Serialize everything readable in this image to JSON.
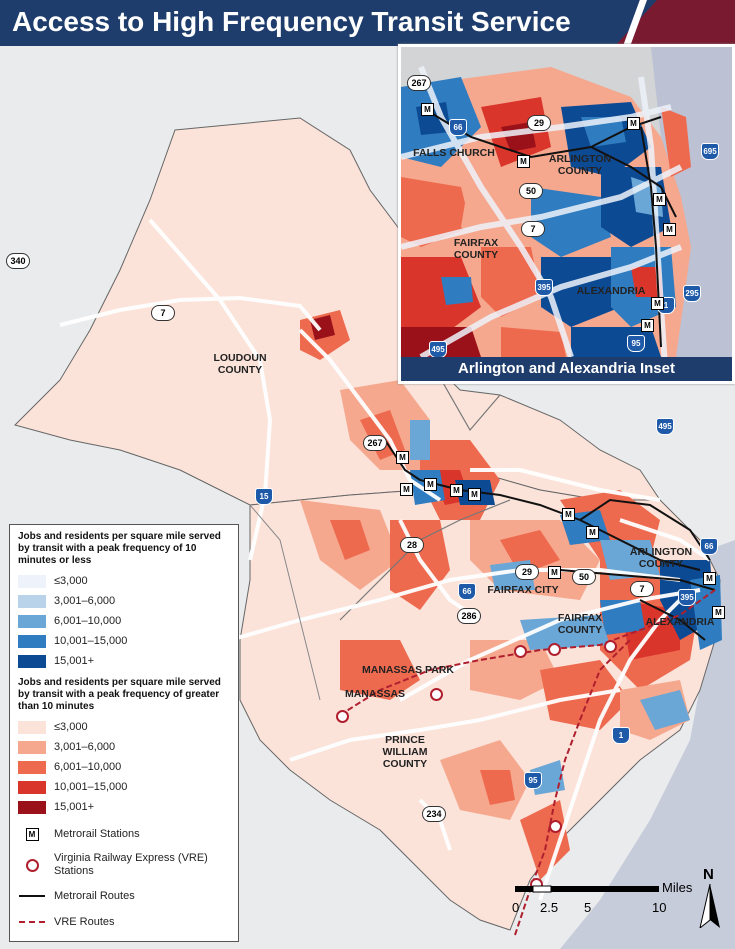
{
  "title": "Access to High Frequency Transit Service",
  "labels": {
    "loudoun": "LOUDOUN\nCOUNTY",
    "arlington": "ARLINGTON\nCOUNTY",
    "fairfax_city": "FAIRFAX CITY",
    "fairfax_county": "FAIRFAX\nCOUNTY",
    "alexandria": "ALEXANDRIA",
    "manassas_park": "MANASSAS PARK",
    "manassas": "MANASSAS",
    "prince_william": "PRINCE\nWILLIAM\nCOUNTY"
  },
  "inset": {
    "title": "Arlington and Alexandria Inset",
    "labels": {
      "falls_church": "FALLS CHURCH",
      "arlington": "ARLINGTON\nCOUNTY",
      "fairfax": "FAIRFAX\nCOUNTY",
      "alexandria": "ALEXANDRIA"
    },
    "route_shields": [
      "267",
      "66",
      "29",
      "50",
      "7",
      "395",
      "1",
      "95",
      "495",
      "295",
      "695"
    ]
  },
  "route_shields": [
    "340",
    "7",
    "267",
    "15",
    "28",
    "29",
    "50",
    "7",
    "66",
    "286",
    "395",
    "495",
    "66",
    "1",
    "95",
    "234"
  ],
  "legend": {
    "high_freq_heading": "Jobs and residents per square mile served by transit with a peak frequency of 10 minutes or less",
    "high_freq": [
      {
        "label": "≤3,000",
        "color": "#eef3fb"
      },
      {
        "label": "3,001–6,000",
        "color": "#b9d3ea"
      },
      {
        "label": "6,001–10,000",
        "color": "#6aa6d6"
      },
      {
        "label": "10,001–15,000",
        "color": "#2f7cc0"
      },
      {
        "label": "15,001+",
        "color": "#0d4a94"
      }
    ],
    "low_freq_heading": "Jobs and residents per square mile served by transit with a peak frequency of greater than 10 minutes",
    "low_freq": [
      {
        "label": "≤3,000",
        "color": "#fbe3da"
      },
      {
        "label": "3,001–6,000",
        "color": "#f5a88e"
      },
      {
        "label": "6,001–10,000",
        "color": "#ee6a4f"
      },
      {
        "label": "10,001–15,000",
        "color": "#d9352b"
      },
      {
        "label": "15,001+",
        "color": "#9b1119"
      }
    ],
    "metro_stations": "Metrorail Stations",
    "metro_symbol": "M",
    "vre_stations": "Virginia Railway Express (VRE) Stations",
    "metro_routes": "Metrorail Routes",
    "vre_routes": "VRE Routes"
  },
  "scale": {
    "unit": "Miles",
    "ticks": [
      "0",
      "2.5",
      "5",
      "10"
    ]
  },
  "north": "N"
}
